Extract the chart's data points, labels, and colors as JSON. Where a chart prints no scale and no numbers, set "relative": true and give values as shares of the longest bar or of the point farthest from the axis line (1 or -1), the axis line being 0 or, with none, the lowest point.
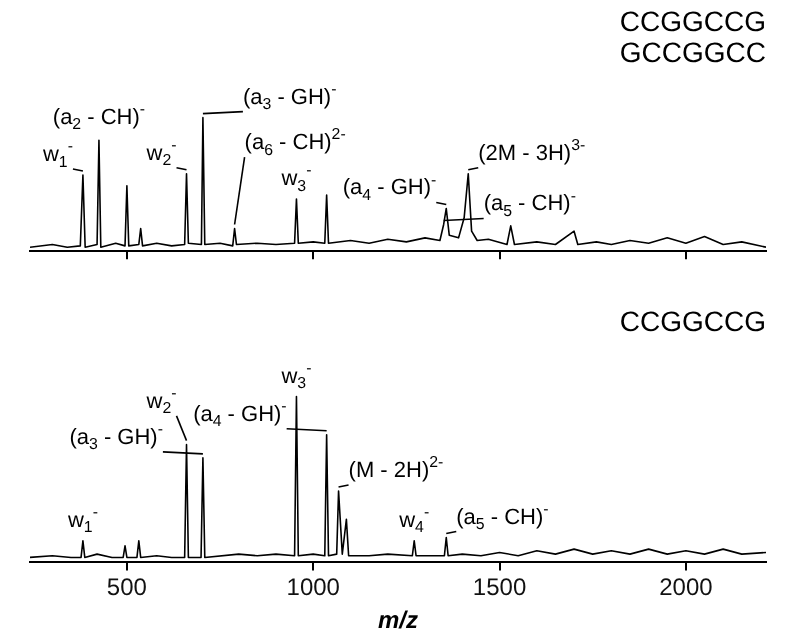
{
  "chart_data": [
    {
      "type": "line",
      "relative": true,
      "title": "CCGGCCG\nGCCGGCC",
      "xlim": [
        240,
        2215
      ],
      "xticks": [
        500,
        1000,
        1500,
        2000
      ],
      "tick_labels": false,
      "x": [
        240,
        300,
        340,
        375,
        382,
        388,
        420,
        425,
        430,
        470,
        495,
        500,
        505,
        532,
        537,
        542,
        580,
        620,
        655,
        660,
        665,
        700,
        704,
        709,
        750,
        784,
        789,
        794,
        850,
        900,
        950,
        955,
        960,
        1000,
        1031,
        1036,
        1041,
        1100,
        1150,
        1200,
        1250,
        1300,
        1340,
        1350,
        1357,
        1365,
        1390,
        1405,
        1416,
        1425,
        1440,
        1470,
        1520,
        1530,
        1540,
        1600,
        1650,
        1700,
        1710,
        1760,
        1800,
        1850,
        1900,
        1950,
        2000,
        2050,
        2100,
        2150,
        2215
      ],
      "series": [
        {
          "color": "#000000",
          "values": [
            0.03,
            0.05,
            0.03,
            0.04,
            0.57,
            0.03,
            0.05,
            0.83,
            0.03,
            0.06,
            0.04,
            0.49,
            0.04,
            0.05,
            0.17,
            0.04,
            0.06,
            0.04,
            0.05,
            0.58,
            0.06,
            0.05,
            1,
            0.05,
            0.06,
            0.04,
            0.17,
            0.05,
            0.06,
            0.05,
            0.06,
            0.39,
            0.06,
            0.07,
            0.06,
            0.42,
            0.06,
            0.08,
            0.06,
            0.09,
            0.07,
            0.1,
            0.08,
            0.2,
            0.32,
            0.12,
            0.1,
            0.25,
            0.58,
            0.15,
            0.08,
            0.09,
            0.05,
            0.19,
            0.05,
            0.07,
            0.05,
            0.15,
            0.05,
            0.07,
            0.05,
            0.08,
            0.06,
            0.1,
            0.06,
            0.11,
            0.05,
            0.07,
            0.03
          ]
        }
      ],
      "annotations": [
        {
          "text": "w$_{1}$$^{-}$",
          "x": 382,
          "y": 0.57
        },
        {
          "text": "(a$_{2}$ - CH)$^{-}$",
          "x": 425,
          "y": 0.83
        },
        {
          "text": "w$_{2}$$^{-}$",
          "x": 660,
          "y": 0.58
        },
        {
          "text": "(a$_{3}$ - GH)$^{-}$",
          "x": 704,
          "y": 1
        },
        {
          "text": "(a$_{6}$ - CH)$^{2-}$",
          "x": 789,
          "y": 0.17
        },
        {
          "text": "w$_{3}$$^{-}$",
          "x": 955,
          "y": 0.39
        },
        {
          "text": "(a$_{4}$ - GH)$^{-}$",
          "x": 1357,
          "y": 0.32
        },
        {
          "text": "(a$_{5}$ - CH)$^{-}$",
          "x": 1350,
          "y": 0.2
        },
        {
          "text": "(2M - 3H)$^{3-}$",
          "x": 1416,
          "y": 0.58
        }
      ]
    },
    {
      "type": "line",
      "relative": true,
      "title": "CCGGCCG",
      "xlabel": "m/z",
      "xlim": [
        240,
        2215
      ],
      "xticks": [
        500,
        1000,
        1500,
        2000
      ],
      "tick_labels": "x",
      "x": [
        240,
        300,
        350,
        377,
        382,
        387,
        420,
        460,
        490,
        495,
        500,
        527,
        532,
        537,
        580,
        620,
        655,
        660,
        665,
        699,
        704,
        709,
        800,
        850,
        900,
        950,
        955,
        960,
        1000,
        1031,
        1036,
        1041,
        1063,
        1068,
        1078,
        1089,
        1095,
        1150,
        1200,
        1266,
        1271,
        1276,
        1352,
        1357,
        1362,
        1400,
        1450,
        1500,
        1550,
        1600,
        1650,
        1700,
        1750,
        1800,
        1850,
        1900,
        1950,
        2000,
        2050,
        2100,
        2150,
        2215
      ],
      "series": [
        {
          "color": "#000000",
          "values": [
            0.03,
            0.04,
            0.03,
            0.03,
            0.13,
            0.03,
            0.05,
            0.03,
            0.03,
            0.1,
            0.03,
            0.03,
            0.13,
            0.03,
            0.04,
            0.03,
            0.03,
            0.71,
            0.03,
            0.03,
            0.63,
            0.03,
            0.05,
            0.04,
            0.05,
            0.04,
            1,
            0.04,
            0.05,
            0.04,
            0.77,
            0.04,
            0.05,
            0.43,
            0.05,
            0.26,
            0.04,
            0.04,
            0.05,
            0.04,
            0.13,
            0.04,
            0.04,
            0.15,
            0.04,
            0.05,
            0.04,
            0.06,
            0.04,
            0.07,
            0.05,
            0.08,
            0.05,
            0.07,
            0.05,
            0.08,
            0.05,
            0.07,
            0.05,
            0.08,
            0.05,
            0.06
          ]
        }
      ],
      "annotations": [
        {
          "text": "w$_{1}$$^{-}$",
          "x": 382,
          "y": 0.13
        },
        {
          "text": "w$_{2}$$^{-}$",
          "x": 660,
          "y": 0.71
        },
        {
          "text": "(a$_{3}$ - GH)$^{-}$",
          "x": 704,
          "y": 0.63
        },
        {
          "text": "w$_{3}$$^{-}$",
          "x": 955,
          "y": 1
        },
        {
          "text": "(a$_{4}$ - GH)$^{-}$",
          "x": 1036,
          "y": 0.77
        },
        {
          "text": "(M - 2H)$^{2-}$",
          "x": 1068,
          "y": 0.43
        },
        {
          "text": "w$_{4}$$^{-}$",
          "x": 1271,
          "y": 0.13
        },
        {
          "text": "(a$_{5}$ - CH)$^{-}$",
          "x": 1357,
          "y": 0.15
        }
      ]
    }
  ]
}
